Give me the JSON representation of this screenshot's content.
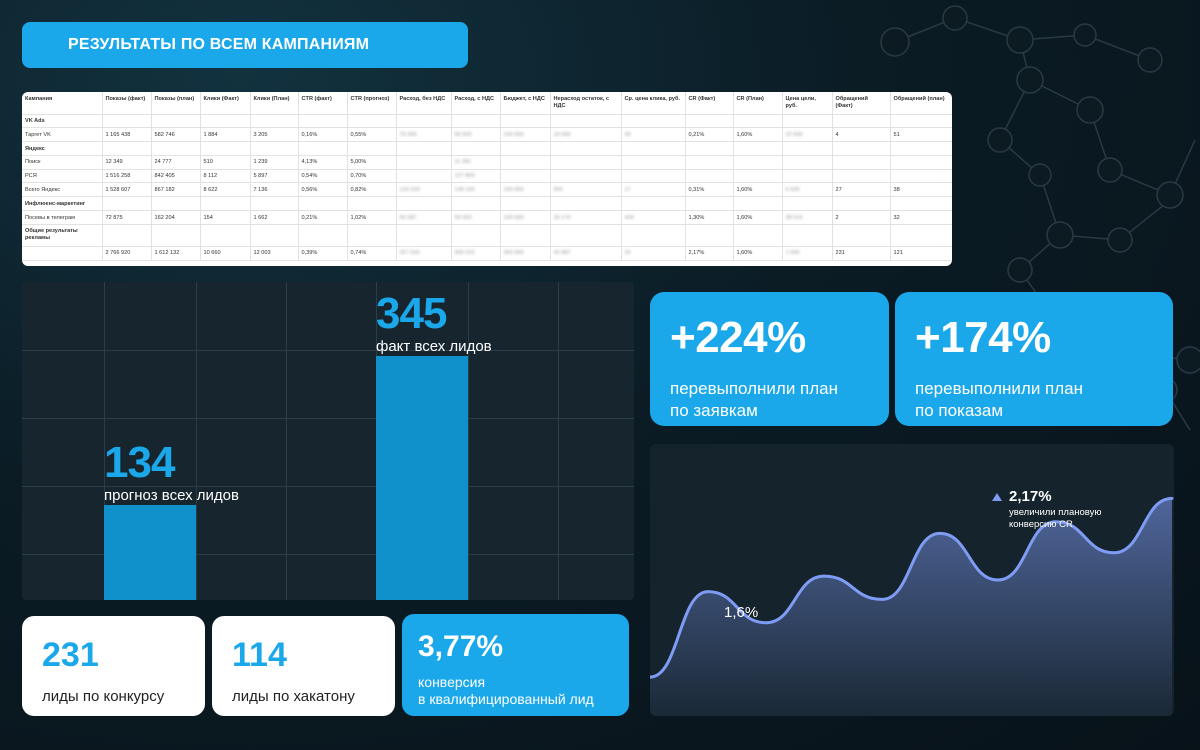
{
  "header": {
    "title": "РЕЗУЛЬТАТЫ ПО ВСЕМ КАМПАНИЯМ"
  },
  "table": {
    "columns": [
      "Кампания",
      "Показы (факт)",
      "Показы (план)",
      "Клики (Факт)",
      "Клики (План)",
      "CTR (факт)",
      "CTR (прогноз)",
      "Расход, без НДС",
      "Расход, с НДС",
      "Бюджет, с НДС",
      "Нерасход остаток, с НДС",
      "Ср. цена клика, руб.",
      "CR (Факт)",
      "CR (План)",
      "Цена цели, руб.",
      "Обращений (Факт)",
      "Обращений (план)"
    ],
    "rows": [
      {
        "type": "section",
        "cells": [
          "VK Ads",
          "",
          "",
          "",
          "",
          "",
          "",
          "",
          "",
          "",
          "",
          "",
          "",
          "",
          "",
          "",
          ""
        ]
      },
      {
        "type": "data",
        "cells": [
          "Таргет VK",
          "1 165 438",
          "582 746",
          "1 884",
          "3 205",
          "0,16%",
          "0,55%",
          "75 000",
          "90 000",
          "100 000",
          "10 000",
          "40",
          "0,21%",
          "1,60%",
          "22 500",
          "4",
          "51"
        ]
      },
      {
        "type": "section",
        "cells": [
          "Яндекс",
          "",
          "",
          "",
          "",
          "",
          "",
          "",
          "",
          "",
          "",
          "",
          "",
          "",
          "",
          "",
          ""
        ]
      },
      {
        "type": "data",
        "cells": [
          "Поиск",
          "12 349",
          "24 777",
          "510",
          "1 239",
          "4,13%",
          "5,00%",
          "",
          "11 281",
          "",
          "",
          "",
          "",
          "",
          "",
          "",
          ""
        ]
      },
      {
        "type": "data",
        "cells": [
          "РСЯ",
          "1 516 258",
          "842 405",
          "8 112",
          "5 897",
          "0,54%",
          "0,70%",
          "",
          "127 803",
          "",
          "",
          "",
          "",
          "",
          "",
          "",
          ""
        ]
      },
      {
        "type": "data",
        "cells": [
          "Всего Яндекс",
          "1 528 607",
          "867 182",
          "8 622",
          "7 136",
          "0,56%",
          "0,82%",
          "124 220",
          "149 100",
          "150 000",
          "900",
          "17",
          "0,31%",
          "1,60%",
          "5 520",
          "27",
          "38"
        ]
      },
      {
        "type": "section",
        "cells": [
          "Инфлюенс-маркетинг",
          "",
          "",
          "",
          "",
          "",
          "",
          "",
          "",
          "",
          "",
          "",
          "",
          "",
          "",
          "",
          ""
        ]
      },
      {
        "type": "data",
        "cells": [
          "Посевы в телеграм",
          "72 875",
          "162 204",
          "154",
          "1 662",
          "0,21%",
          "1,02%",
          "66 587",
          "69 003",
          "100 000",
          "20 170",
          "434",
          "1,30%",
          "1,60%",
          "28 515",
          "2",
          "32"
        ]
      },
      {
        "type": "tall",
        "cells": [
          "Общие результаты рекламы",
          "",
          "",
          "",
          "",
          "",
          "",
          "",
          "",
          "",
          "",
          "",
          "",
          "",
          "",
          "",
          ""
        ]
      },
      {
        "type": "data",
        "cells": [
          "",
          "2 766 920",
          "1 612 132",
          "10 660",
          "12 003",
          "0,39%",
          "0,74%",
          "257 016",
          "300 015",
          "350 000",
          "43 987",
          "25",
          "2,17%",
          "1,60%",
          "1 500",
          "231",
          "121"
        ]
      }
    ]
  },
  "bar_chart": {
    "chart_data": {
      "type": "bar",
      "categories": [
        "прогноз всех лидов",
        "факт всех лидов"
      ],
      "values": [
        134,
        345
      ],
      "ylim": [
        0,
        450
      ]
    },
    "labels": [
      {
        "value": "134",
        "caption": "прогноз всех лидов"
      },
      {
        "value": "345",
        "caption": "факт всех лидов"
      }
    ]
  },
  "kpis": {
    "requests": {
      "value": "+224%",
      "desc_line1": "перевыполнили план",
      "desc_line2": "по заявкам"
    },
    "impressions": {
      "value": "+174%",
      "desc_line1": "перевыполнили план",
      "desc_line2": "по показам"
    },
    "contest": {
      "value": "231",
      "desc": "лиды по конкурсу"
    },
    "hackathon": {
      "value": "114",
      "desc": "лиды по хакатону"
    },
    "conversion": {
      "value": "3,77%",
      "desc_line1": "конверсия",
      "desc_line2": "в квалифицированный лид"
    }
  },
  "line_chart": {
    "chart_data": {
      "type": "area",
      "x": [
        0,
        1,
        2,
        3,
        4,
        5,
        6,
        7,
        8,
        9
      ],
      "values": [
        0.0,
        1.1,
        0.7,
        1.3,
        1.0,
        1.85,
        1.25,
        2.0,
        1.6,
        2.3
      ],
      "ylim": [
        -0.5,
        3.0
      ]
    },
    "label_low": "1,6%",
    "label_high_value": "2,17%",
    "label_high_desc_line1": "увеличили плановую",
    "label_high_desc_line2": "конверсию CR",
    "accent": "#7f9cf5"
  }
}
